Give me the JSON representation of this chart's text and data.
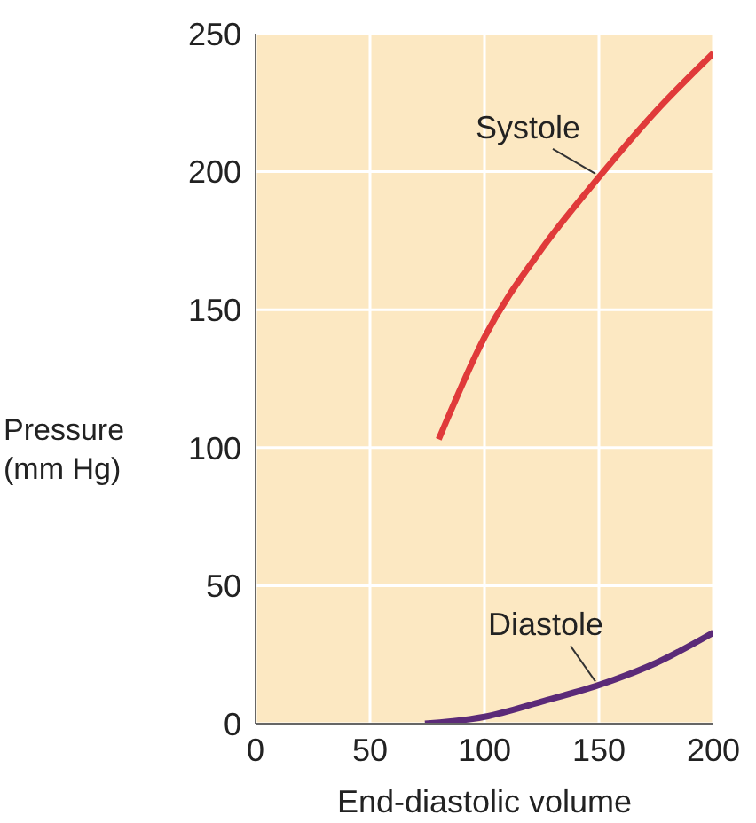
{
  "chart_data": {
    "type": "line",
    "xlabel": "End-diastolic volume",
    "ylabel": "Pressure (mm Hg)",
    "series": [
      {
        "name": "Systole",
        "color": "#e03a3a",
        "x": [
          80,
          100,
          125,
          150,
          175,
          200
        ],
        "values": [
          103,
          140,
          172,
          198,
          222,
          243
        ]
      },
      {
        "name": "Diastole",
        "color": "#5b2a78",
        "x": [
          74,
          100,
          125,
          150,
          175,
          200
        ],
        "values": [
          0,
          2.5,
          8,
          14,
          22,
          33
        ]
      }
    ],
    "xlim": [
      0,
      200
    ],
    "xticks": [
      0,
      50,
      100,
      150,
      200
    ],
    "ylim": [
      0,
      250
    ],
    "yticks": [
      0,
      50,
      100,
      150,
      200,
      250
    ],
    "grid": true,
    "legend": false,
    "marker": "none",
    "line_style": "solid"
  }
}
